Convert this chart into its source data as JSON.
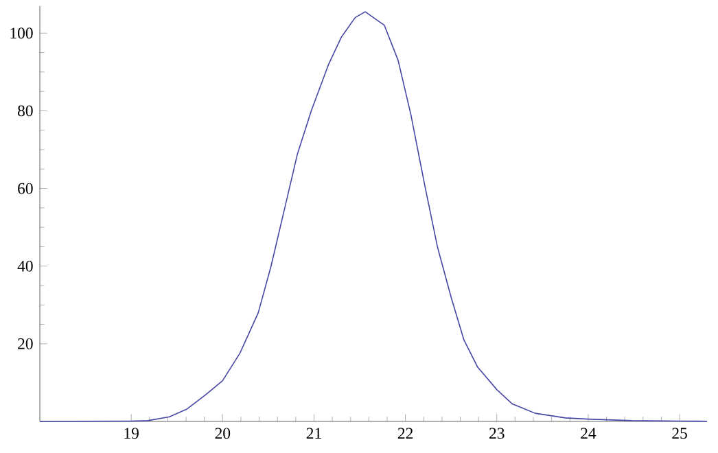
{
  "chart_data": {
    "type": "line",
    "color": "#4646a6",
    "marker": "none",
    "line_style": "solid",
    "grid": false,
    "x": [
      18.0,
      19.0,
      19.18,
      19.42,
      19.61,
      19.81,
      20.0,
      20.19,
      20.39,
      20.53,
      20.68,
      20.82,
      20.97,
      21.16,
      21.3,
      21.45,
      21.56,
      21.77,
      21.92,
      22.06,
      22.21,
      22.35,
      22.5,
      22.64,
      22.79,
      23.0,
      23.17,
      23.42,
      23.75,
      24.0,
      24.48,
      25.0,
      25.3
    ],
    "values": [
      0,
      0.1,
      0.2,
      1.2,
      3.2,
      6.8,
      10.5,
      17.6,
      28,
      40,
      55,
      69,
      80,
      92,
      99,
      104,
      105.5,
      102,
      93,
      79,
      61,
      45,
      32,
      21,
      14,
      8.2,
      4.5,
      2.1,
      0.9,
      0.6,
      0.2,
      0.1,
      0.05
    ],
    "xlim": [
      18,
      25.3
    ],
    "ylim": [
      0,
      107
    ],
    "xticks": [
      19,
      20,
      21,
      22,
      23,
      24,
      25
    ],
    "yticks": [
      20,
      40,
      60,
      80,
      100
    ]
  }
}
